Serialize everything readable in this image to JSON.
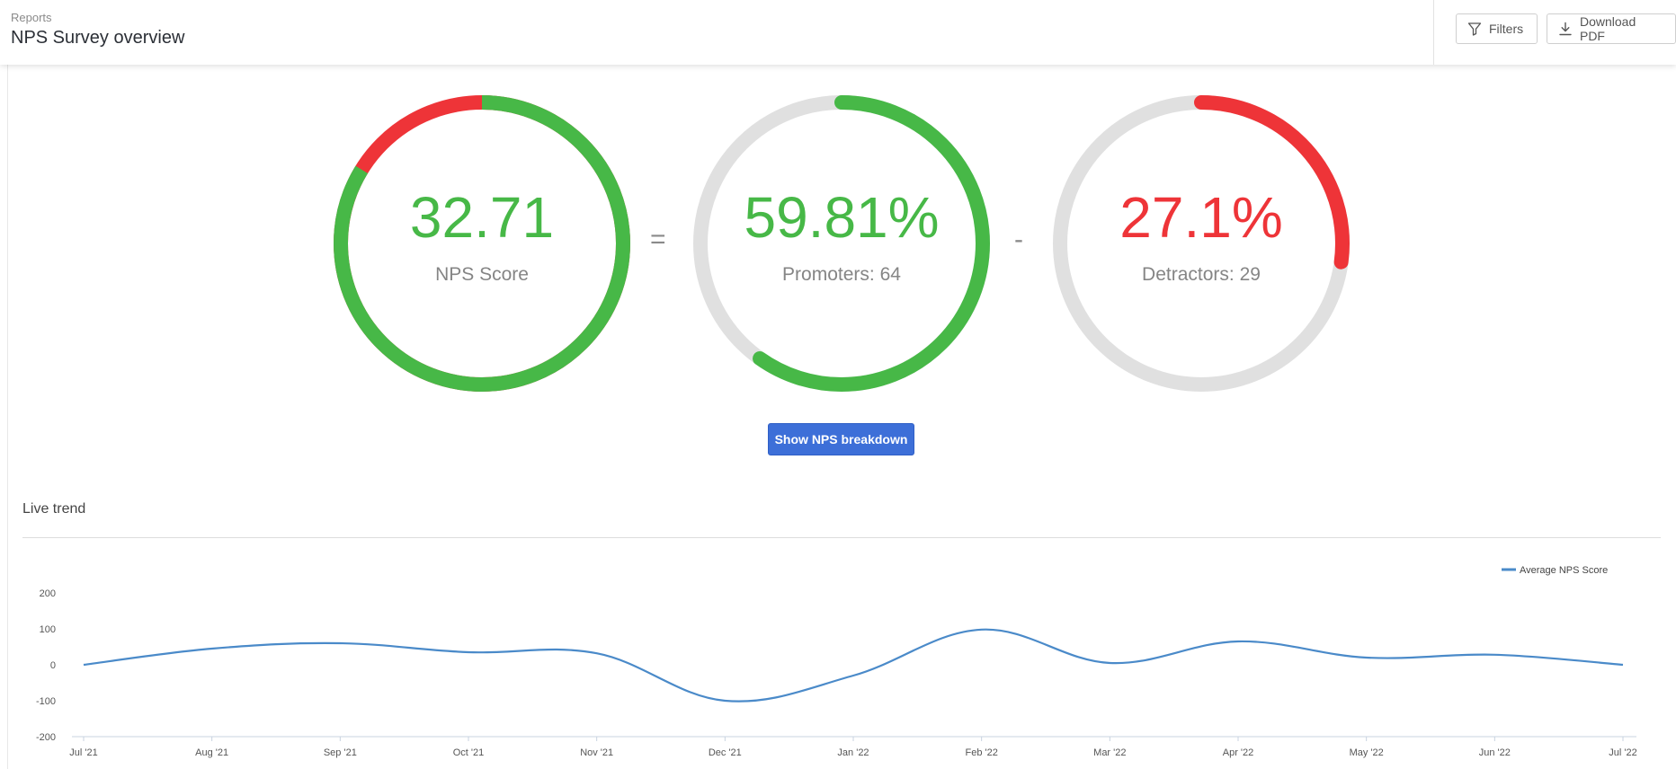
{
  "header": {
    "breadcrumb": "Reports",
    "title": "NPS Survey overview",
    "filters_label": "Filters",
    "download_label": "Download PDF"
  },
  "gauges": {
    "nps": {
      "value": "32.71",
      "label": "NPS Score",
      "color": "#47b847",
      "negative_color": "#ee3438",
      "score": 32.71,
      "promoters_fraction": 0.5981,
      "detractors_fraction": 0.271
    },
    "promoters": {
      "value": "59.81%",
      "label": "Promoters: 64",
      "color": "#47b847",
      "fraction": 0.5981
    },
    "detractors": {
      "value": "27.1%",
      "label": "Detractors: 29",
      "color": "#ee3438",
      "fraction": 0.271
    },
    "track_color": "#e0e0e0",
    "equals_sign": "=",
    "minus_sign": "-"
  },
  "breakdown_button": "Show NPS breakdown",
  "trend": {
    "title": "Live trend"
  },
  "chart_data": {
    "type": "line",
    "title": "",
    "xlabel": "",
    "ylabel": "",
    "ylim": [
      -200,
      200
    ],
    "yticks": [
      200,
      100,
      0,
      -100,
      -200
    ],
    "grid": false,
    "legend_position": "top-right",
    "categories": [
      "Jul '21",
      "Aug '21",
      "Sep '21",
      "Oct '21",
      "Nov '21",
      "Dec '21",
      "Jan '22",
      "Feb '22",
      "Mar '22",
      "Apr '22",
      "May '22",
      "Jun '22",
      "Jul '22"
    ],
    "series": [
      {
        "name": "Average NPS Score",
        "color": "#4a8ac9",
        "values": [
          0,
          45,
          60,
          35,
          32,
          -100,
          -30,
          98,
          5,
          65,
          20,
          28,
          0
        ]
      }
    ]
  }
}
